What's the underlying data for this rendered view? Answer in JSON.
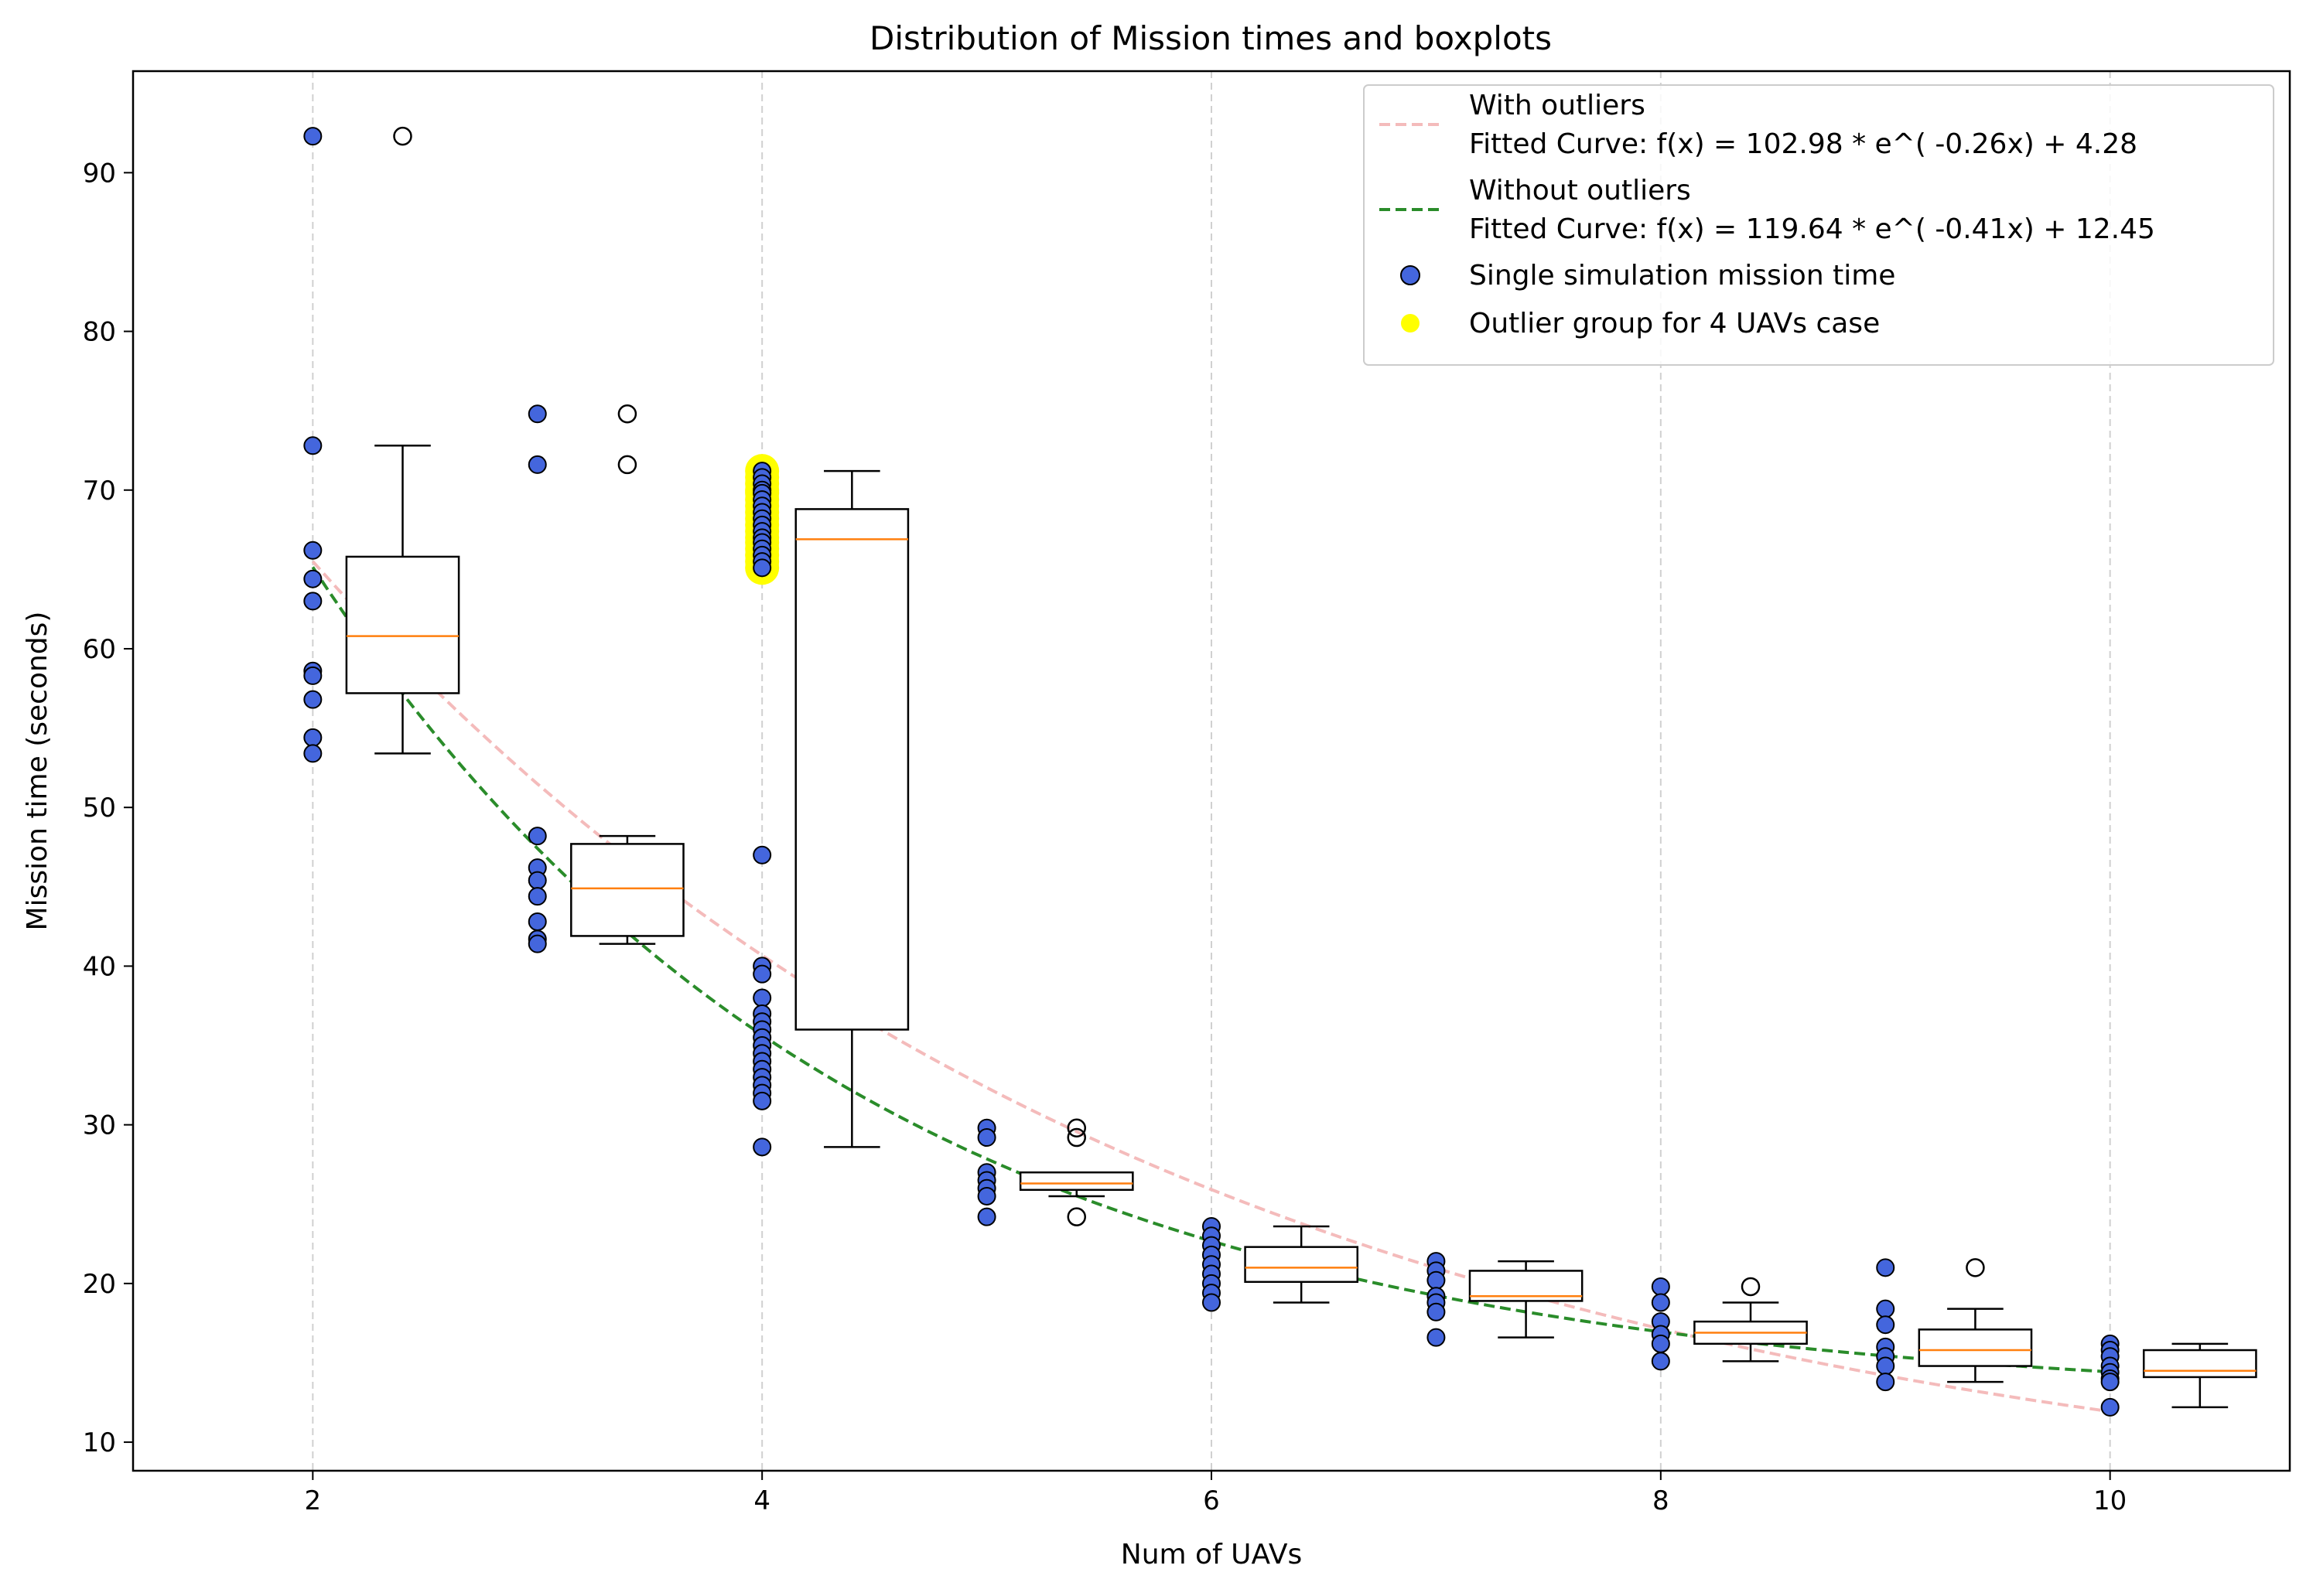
{
  "chart_data": {
    "type": "scatter",
    "title": "Distribution of Mission times and boxplots",
    "xlabel": "Num of UAVs",
    "ylabel": "Mission time (seconds)",
    "xlim": [
      1.2,
      10.8
    ],
    "ylim": [
      8.2,
      96.4
    ],
    "xticks": [
      "2",
      "4",
      "6",
      "8",
      "10"
    ],
    "xtick_values": [
      2,
      4,
      6,
      8,
      10
    ],
    "yticks": [
      "10",
      "20",
      "30",
      "40",
      "50",
      "60",
      "70",
      "80",
      "90"
    ],
    "ytick_values": [
      10,
      20,
      30,
      40,
      50,
      60,
      70,
      80,
      90
    ],
    "grid": "vertical dashed lines at major x ticks",
    "legend_position": "top-right",
    "colors": {
      "points": "#4466dd",
      "outlier_group": "#ffff00",
      "with_outliers_curve": "#f4bbbb",
      "without_outliers_curve": "#2a8c2a",
      "median": "#ff7f0e"
    },
    "points": [
      {
        "x": 2,
        "values": [
          92.3,
          72.8,
          66.2,
          64.4,
          63.0,
          58.6,
          58.3,
          56.8,
          54.4,
          53.4
        ]
      },
      {
        "x": 3,
        "values": [
          74.8,
          71.6,
          48.2,
          46.2,
          45.4,
          44.4,
          42.8,
          41.7,
          41.4
        ]
      },
      {
        "x": 4,
        "values": [
          47.0,
          40.0,
          39.5,
          38.0,
          37.0,
          36.5,
          36.0,
          35.5,
          35.0,
          34.5,
          34.0,
          33.5,
          33.0,
          32.5,
          32.0,
          31.5,
          28.6
        ]
      },
      {
        "x": 5,
        "values": [
          29.8,
          29.2,
          27.0,
          26.5,
          26.0,
          25.5,
          24.2
        ]
      },
      {
        "x": 6,
        "values": [
          23.6,
          23.0,
          22.4,
          21.8,
          21.2,
          20.6,
          20.0,
          19.4,
          18.8
        ]
      },
      {
        "x": 7,
        "values": [
          21.4,
          20.8,
          20.2,
          19.2,
          18.8,
          18.2,
          16.6
        ]
      },
      {
        "x": 8,
        "values": [
          19.8,
          18.8,
          17.6,
          16.8,
          16.2,
          15.1
        ]
      },
      {
        "x": 9,
        "values": [
          21.0,
          18.4,
          17.4,
          16.0,
          15.4,
          14.8,
          13.8
        ]
      },
      {
        "x": 10,
        "values": [
          16.2,
          15.8,
          15.4,
          14.8,
          14.4,
          14.0,
          13.8,
          12.2
        ]
      }
    ],
    "outlier_group": {
      "x": 4,
      "values": [
        71.2,
        70.8,
        70.4,
        70.0,
        69.8,
        69.4,
        69.0,
        68.6,
        68.2,
        67.8,
        67.4,
        67.0,
        66.7,
        66.3,
        65.9,
        65.5,
        65.1
      ]
    },
    "boxplots": [
      {
        "position": 2.4,
        "whisker_low": 53.4,
        "q1": 57.2,
        "median": 60.8,
        "q3": 65.8,
        "whisker_high": 72.8,
        "fliers": [
          92.3
        ]
      },
      {
        "position": 3.4,
        "whisker_low": 41.4,
        "q1": 41.9,
        "median": 44.9,
        "q3": 47.7,
        "whisker_high": 48.2,
        "fliers": [
          74.8,
          71.6
        ]
      },
      {
        "position": 4.4,
        "whisker_low": 28.6,
        "q1": 36.0,
        "median": 66.9,
        "q3": 68.8,
        "whisker_high": 71.2,
        "fliers": []
      },
      {
        "position": 5.4,
        "whisker_low": 25.5,
        "q1": 25.9,
        "median": 26.3,
        "q3": 27.0,
        "whisker_high": 27.0,
        "fliers": [
          29.8,
          29.2,
          24.2
        ]
      },
      {
        "position": 6.4,
        "whisker_low": 18.8,
        "q1": 20.1,
        "median": 21.0,
        "q3": 22.3,
        "whisker_high": 23.6,
        "fliers": []
      },
      {
        "position": 7.4,
        "whisker_low": 16.6,
        "q1": 18.9,
        "median": 19.2,
        "q3": 20.8,
        "whisker_high": 21.4,
        "fliers": []
      },
      {
        "position": 8.4,
        "whisker_low": 15.1,
        "q1": 16.2,
        "median": 16.9,
        "q3": 17.6,
        "whisker_high": 18.8,
        "fliers": [
          19.8
        ]
      },
      {
        "position": 9.4,
        "whisker_low": 13.8,
        "q1": 14.8,
        "median": 15.8,
        "q3": 17.1,
        "whisker_high": 18.4,
        "fliers": [
          21.0
        ]
      },
      {
        "position": 10.4,
        "whisker_low": 12.2,
        "q1": 14.1,
        "median": 14.5,
        "q3": 15.8,
        "whisker_high": 16.2,
        "fliers": []
      }
    ],
    "curves": [
      {
        "name": "With outliers",
        "a": 102.98,
        "b": -0.26,
        "c": 4.28,
        "x_range": [
          2,
          10
        ],
        "style": "dashed"
      },
      {
        "name": "Without outliers",
        "a": 119.64,
        "b": -0.41,
        "c": 12.45,
        "x_range": [
          2,
          10
        ],
        "style": "dashed"
      }
    ],
    "legend": [
      {
        "kind": "line",
        "color": "#f4bbbb",
        "lines": [
          "With outliers",
          "Fitted Curve: f(x) = 102.98 * e^( -0.26x) + 4.28"
        ]
      },
      {
        "kind": "line",
        "color": "#2a8c2a",
        "lines": [
          "Without outliers",
          "Fitted Curve: f(x) = 119.64 * e^( -0.41x) + 12.45"
        ]
      },
      {
        "kind": "point",
        "color": "#4466dd",
        "lines": [
          "Single simulation mission time"
        ]
      },
      {
        "kind": "point",
        "color": "#ffff00",
        "lines": [
          "Outlier group for 4 UAVs case"
        ]
      }
    ]
  }
}
